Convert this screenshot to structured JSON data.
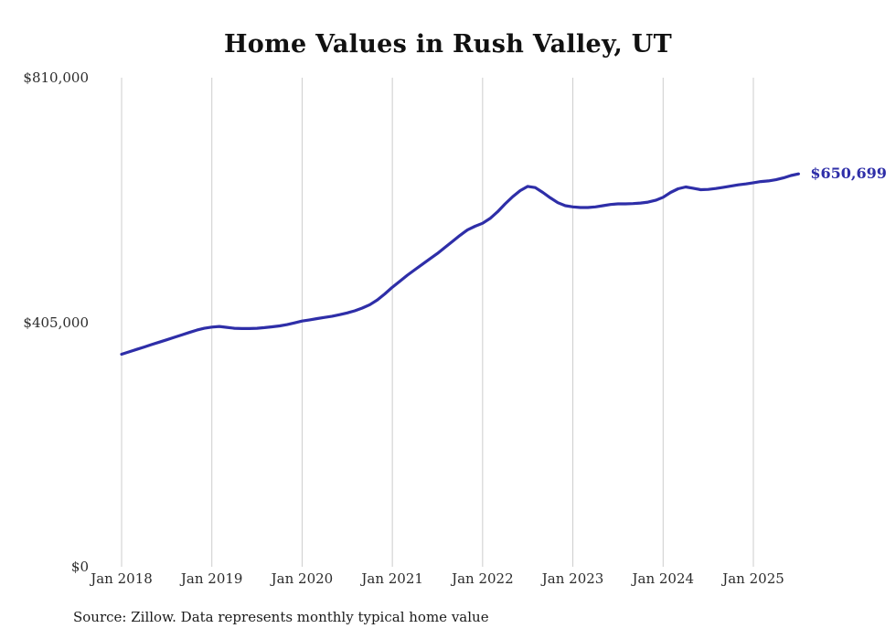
{
  "title": "Home Values in Rush Valley, UT",
  "source_note": "Source: Zillow. Data represents monthly typical home value",
  "end_label": "$650,699",
  "colors": {
    "line": "#2e2ea8",
    "end_label": "#2e2ea8",
    "grid": "#cccccc",
    "text": "#2b2b2b"
  },
  "chart_data": {
    "type": "line",
    "title": "Home Values in Rush Valley, UT",
    "ylabel": "",
    "xlabel": "",
    "ylim": [
      0,
      810000
    ],
    "grid": "vertical-only",
    "legend": "none",
    "y_ticks": [
      {
        "label": "$810,000",
        "value": 810000
      },
      {
        "label": "$405,000",
        "value": 405000
      },
      {
        "label": "$0",
        "value": 0
      }
    ],
    "x_ticks": [
      "Jan 2018",
      "Jan 2019",
      "Jan 2020",
      "Jan 2021",
      "Jan 2022",
      "Jan 2023",
      "Jan 2024",
      "Jan 2025"
    ],
    "x_tick_interval_months": 12,
    "x_start": "2018-01",
    "x_step": "1 month",
    "x_end": "2025-07",
    "end_value": 650699,
    "series": [
      {
        "name": "Monthly typical home value",
        "values": [
          352000,
          356000,
          360000,
          364000,
          368000,
          372000,
          376000,
          380000,
          384000,
          388000,
          392000,
          395000,
          397000,
          398000,
          396500,
          395000,
          394500,
          394500,
          395000,
          396000,
          397500,
          399000,
          401000,
          404000,
          407000,
          409000,
          411000,
          413000,
          415000,
          417500,
          420500,
          424000,
          428500,
          434000,
          442000,
          452000,
          463000,
          473000,
          483000,
          492000,
          501000,
          510000,
          519000,
          529000,
          539000,
          549000,
          558000,
          564000,
          569000,
          577000,
          588000,
          601000,
          613000,
          623000,
          630000,
          628000,
          620000,
          611000,
          603000,
          598000,
          596000,
          595000,
          595000,
          596000,
          598000,
          600000,
          601000,
          601000,
          601500,
          602500,
          604000,
          607000,
          612000,
          620000,
          626000,
          629000,
          627000,
          624500,
          625000,
          626500,
          628500,
          630500,
          632500,
          634000,
          636000,
          638000,
          639000,
          641000,
          644000,
          648000,
          650699
        ]
      }
    ]
  }
}
